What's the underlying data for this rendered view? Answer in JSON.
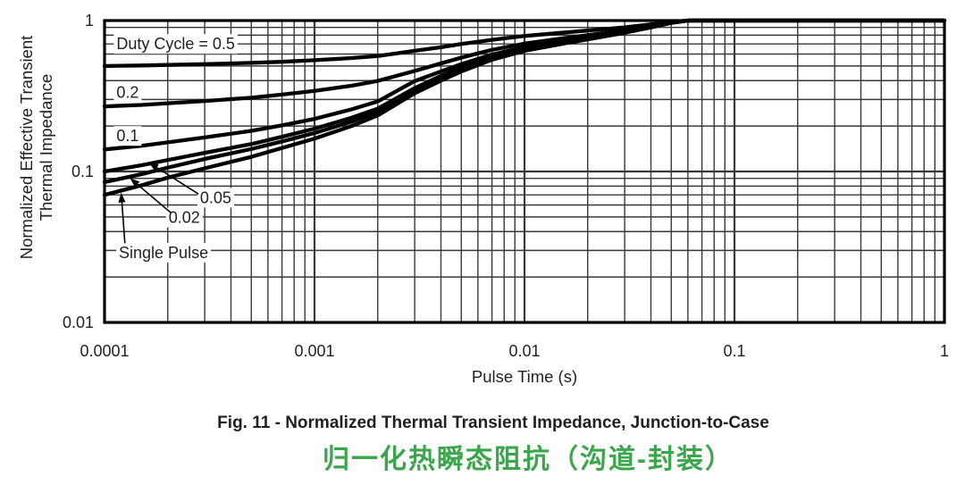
{
  "figure": {
    "caption_en": "Fig. 11 - Normalized Thermal Transient Impedance, Junction-to-Case",
    "caption_zh": "归一化热瞬态阻抗（沟道-封装）",
    "caption_zh_color": "#3BA64B",
    "text_color": "#231f20"
  },
  "chart_data": {
    "type": "line",
    "xlabel": "Pulse Time (s)",
    "ylabel_lines": [
      "Normalized Effective Transient",
      "Thermal Impedance"
    ],
    "x_scale": "log",
    "y_scale": "log",
    "xlim": [
      0.0001,
      1
    ],
    "ylim": [
      0.01,
      1
    ],
    "grid": true,
    "legend_position": "in-plot-labels",
    "grid_color": "#383838",
    "curve_color": "#000000",
    "x_ticks": [
      {
        "v": 0.0001,
        "label": "0.0001"
      },
      {
        "v": 0.001,
        "label": "0.001"
      },
      {
        "v": 0.01,
        "label": "0.01"
      },
      {
        "v": 0.1,
        "label": "0.1"
      },
      {
        "v": 1,
        "label": "1"
      }
    ],
    "y_ticks": [
      {
        "v": 1,
        "label": "1"
      },
      {
        "v": 0.1,
        "label": "0.1"
      },
      {
        "v": 0.01,
        "label": "0.01"
      }
    ],
    "x": [
      0.0001,
      0.00015,
      0.0002,
      0.0003,
      0.0005,
      0.0007,
      0.001,
      0.0015,
      0.002,
      0.003,
      0.004,
      0.005,
      0.007,
      0.01,
      0.015,
      0.02,
      0.03,
      0.04,
      0.05,
      0.06,
      0.1,
      0.3,
      1
    ],
    "series": [
      {
        "name": "Duty Cycle = 0.5",
        "values": [
          0.5,
          0.504,
          0.508,
          0.514,
          0.524,
          0.533,
          0.546,
          0.564,
          0.582,
          0.63,
          0.665,
          0.7,
          0.745,
          0.79,
          0.83,
          0.858,
          0.902,
          0.944,
          0.98,
          1,
          1,
          1,
          1
        ]
      },
      {
        "name": "0.2",
        "values": [
          0.27,
          0.276,
          0.283,
          0.293,
          0.308,
          0.323,
          0.342,
          0.37,
          0.398,
          0.464,
          0.52,
          0.568,
          0.64,
          0.704,
          0.76,
          0.8,
          0.864,
          0.92,
          0.972,
          1,
          1,
          1,
          1
        ]
      },
      {
        "name": "0.1",
        "values": [
          0.14,
          0.148,
          0.156,
          0.168,
          0.186,
          0.202,
          0.223,
          0.258,
          0.291,
          0.397,
          0.46,
          0.514,
          0.595,
          0.667,
          0.73,
          0.775,
          0.847,
          0.91,
          0.969,
          1,
          1,
          1,
          1
        ]
      },
      {
        "name": "0.05",
        "values": [
          0.1,
          0.11,
          0.119,
          0.133,
          0.152,
          0.17,
          0.192,
          0.227,
          0.261,
          0.357,
          0.43,
          0.487,
          0.573,
          0.649,
          0.715,
          0.763,
          0.839,
          0.905,
          0.967,
          1,
          1,
          1,
          1
        ]
      },
      {
        "name": "0.02",
        "values": [
          0.085,
          0.096,
          0.106,
          0.121,
          0.141,
          0.158,
          0.18,
          0.214,
          0.249,
          0.343,
          0.412,
          0.471,
          0.559,
          0.637,
          0.706,
          0.755,
          0.833,
          0.902,
          0.966,
          1,
          1,
          1,
          1
        ]
      },
      {
        "name": "Single Pulse",
        "values": [
          0.07,
          0.081,
          0.091,
          0.105,
          0.125,
          0.143,
          0.165,
          0.2,
          0.235,
          0.33,
          0.4,
          0.46,
          0.55,
          0.63,
          0.7,
          0.75,
          0.83,
          0.9,
          0.965,
          1,
          1,
          1,
          1
        ]
      }
    ],
    "annotations": [
      {
        "text": "Duty Cycle = 0.5",
        "t": 0.000114,
        "z": 0.7
      },
      {
        "text": "0.2",
        "t": 0.000114,
        "z": 0.335
      },
      {
        "text": "0.1",
        "t": 0.000114,
        "z": 0.172
      },
      {
        "text": "0.05",
        "t": 0.000285,
        "z": 0.067,
        "leader": {
          "t1": 0.00028,
          "z1": 0.071,
          "t2": 0.000162,
          "z2": 0.115
        }
      },
      {
        "text": "0.02",
        "t": 0.000202,
        "z": 0.0495,
        "leader": {
          "t1": 0.000208,
          "z1": 0.053,
          "t2": 0.000132,
          "z2": 0.0905
        }
      },
      {
        "text": "Single Pulse",
        "t": 0.000117,
        "z": 0.029,
        "leader": {
          "t1": 0.000125,
          "z1": 0.0335,
          "t2": 0.00012,
          "z2": 0.0725
        }
      }
    ]
  }
}
